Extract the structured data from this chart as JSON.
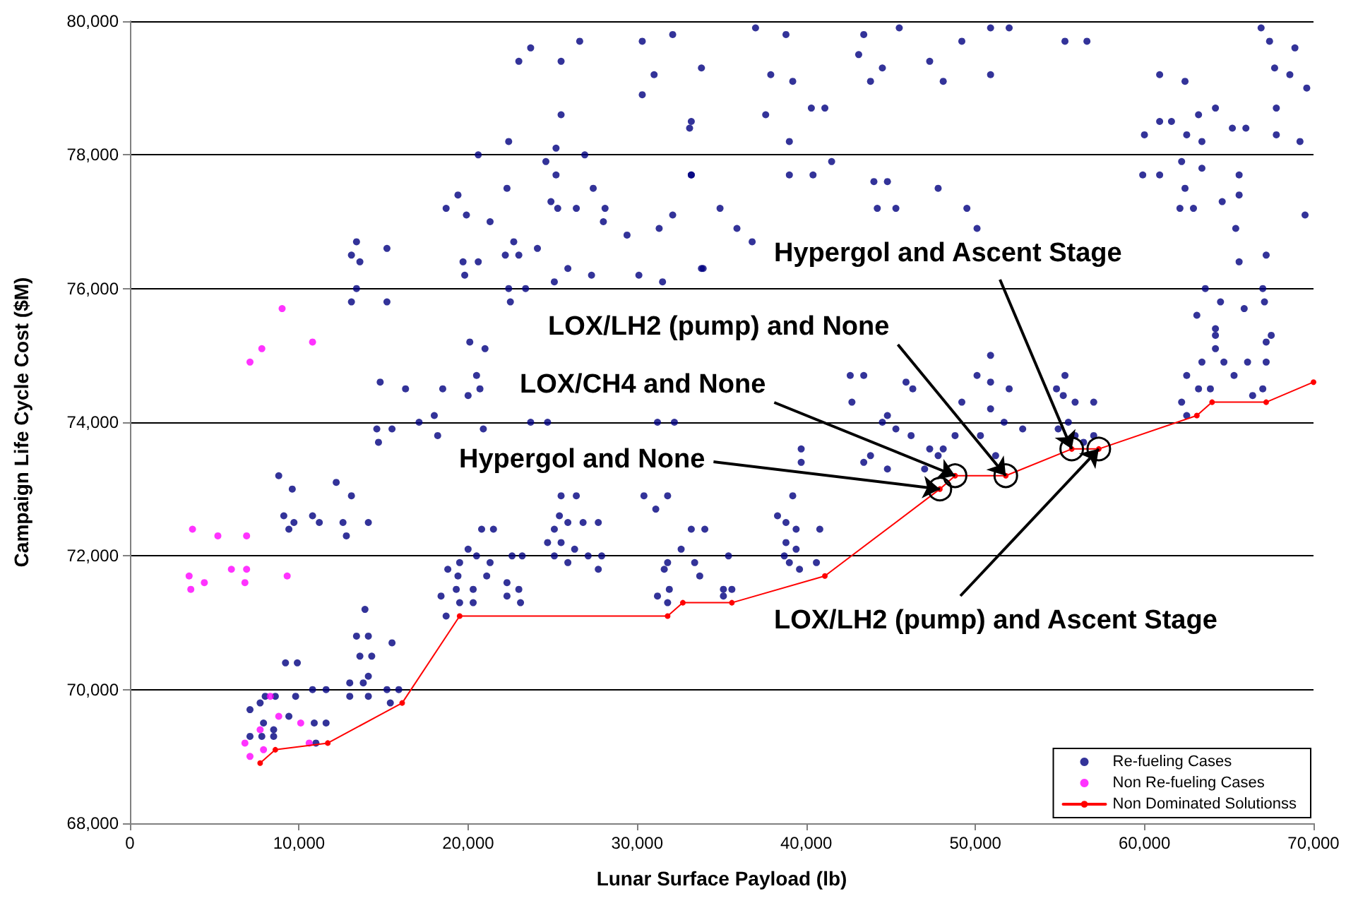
{
  "chart_data": {
    "type": "scatter",
    "xlabel": "Lunar Surface Payload (lb)",
    "ylabel": "Campaign Life Cycle Cost ($M)",
    "xlim": [
      0,
      70000
    ],
    "ylim": [
      68000,
      80000
    ],
    "xticks": [
      0,
      {
        "value": 10000,
        "label": "10,000"
      },
      {
        "value": 20000,
        "label": "20,000"
      },
      {
        "value": 30000,
        "label": "30,000"
      },
      {
        "value": 40000,
        "label": "40,000"
      },
      {
        "value": 50000,
        "label": "50,000"
      },
      {
        "value": 60000,
        "label": "60,000"
      },
      {
        "value": 70000,
        "label": "70,000"
      }
    ],
    "yticks": [
      {
        "value": 68000,
        "label": "68,000"
      },
      {
        "value": 70000,
        "label": "70,000"
      },
      {
        "value": 72000,
        "label": "72,000"
      },
      {
        "value": 74000,
        "label": "74,000"
      },
      {
        "value": 76000,
        "label": "76,000"
      },
      {
        "value": 78000,
        "label": "78,000"
      },
      {
        "value": 80000,
        "label": "80,000"
      }
    ],
    "grid": "y",
    "legend": "bottom right",
    "series": [
      {
        "name": "Re-fueling Cases",
        "color": "#000080",
        "marker": "circle",
        "x": [
          8800,
          9600,
          12200,
          13100,
          9100,
          9700,
          9400,
          10800,
          11200,
          12600,
          12800,
          14100,
          7100,
          7700,
          8000,
          8600,
          9800,
          9200,
          9900,
          7900,
          8500,
          7100,
          7800,
          8500,
          9400,
          10900,
          11600,
          11000,
          10800,
          11600,
          13900,
          13400,
          14100,
          13600,
          14300,
          13000,
          13800,
          14100,
          13000,
          14100,
          15500,
          15200,
          15900,
          15400,
          20000,
          19500,
          20500,
          21300,
          18800,
          19400,
          21100,
          19300,
          20300,
          18400,
          19500,
          20300,
          18700,
          20800,
          21500,
          22300,
          23000,
          22300,
          23100,
          22600,
          23200,
          25400,
          25100,
          25900,
          26800,
          27700,
          24700,
          25500,
          26300,
          27100,
          25100,
          25900,
          27700,
          27900,
          25500,
          26400,
          30400,
          31100,
          31800,
          32600,
          33200,
          34000,
          31800,
          33400,
          35400,
          33700,
          31600,
          31200,
          31900,
          35100,
          35600,
          35100,
          31800,
          38300,
          38800,
          39400,
          40800,
          38800,
          38700,
          39400,
          39000,
          39600,
          40600,
          39200,
          39700,
          39700,
          43400,
          43800,
          44800,
          44500,
          45300,
          46200,
          47300,
          47800,
          47000,
          42600,
          43400,
          42700,
          45900,
          46300,
          44800,
          50900,
          50100,
          50900,
          52000,
          49200,
          50900,
          51700,
          52800,
          50300,
          51200,
          48800,
          48100,
          55300,
          55200,
          55900,
          57000,
          54800,
          55500,
          54900,
          55900,
          57000,
          56400,
          62500,
          62200,
          62500,
          63200,
          63400,
          63900,
          64200,
          64700,
          65300,
          66100,
          67200,
          67000,
          67500,
          66400,
          64200,
          60000,
          60900,
          62500,
          63400,
          61600,
          60900,
          62400,
          63200,
          64200,
          65200,
          66000,
          66900,
          67400,
          68900,
          67700,
          68600,
          67800,
          67800,
          69200,
          69600,
          59900,
          60900,
          62200,
          63400,
          62400,
          62100,
          62900,
          64600,
          65600,
          65600,
          69500,
          65400,
          65600,
          67200,
          63600,
          64500,
          65900,
          67100,
          67000,
          63100,
          64200,
          67200,
          37000,
          38800,
          33800,
          37900,
          39200,
          43400,
          45500,
          44500,
          43100,
          43800,
          47300,
          48100,
          49200,
          50900,
          50900,
          52000,
          55300,
          56600,
          37600,
          39000,
          40300,
          41100,
          39000,
          40400,
          41500,
          44000,
          44800,
          44200,
          45300,
          47800,
          49500,
          34900,
          33200,
          35900,
          36800,
          33800,
          50100,
          33200,
          23700,
          23000,
          26600,
          30300,
          32100,
          25500,
          31000,
          30300,
          25500,
          33100,
          25200,
          22400,
          20600,
          24600,
          26900,
          25200,
          33200,
          19400,
          22300,
          24900,
          27400,
          18700,
          19900,
          21300,
          26400,
          28100,
          25300,
          28000,
          29400,
          31300,
          32100,
          13400,
          13100,
          13600,
          15200,
          19700,
          20600,
          22700,
          22200,
          23000,
          24100,
          19800,
          25900,
          27300,
          30100,
          31500,
          33900,
          22400,
          25100,
          13400,
          15200,
          13100,
          22500,
          23400,
          20100,
          21000,
          20500,
          14800,
          16300,
          18500,
          20000,
          20700,
          14600,
          15500,
          17100,
          18000,
          18200,
          14700,
          20900,
          23700,
          24700,
          31200,
          32200
        ],
        "values": [
          73200,
          73000,
          73100,
          72900,
          72600,
          72500,
          72400,
          72600,
          72500,
          72500,
          72300,
          72500,
          69700,
          69800,
          69900,
          69900,
          69900,
          70400,
          70400,
          69500,
          69400,
          69300,
          69300,
          69300,
          69600,
          69500,
          69500,
          69200,
          70000,
          70000,
          71200,
          70800,
          70800,
          70500,
          70500,
          70100,
          70100,
          70200,
          69900,
          69900,
          70700,
          70000,
          70000,
          69800,
          72100,
          71900,
          72000,
          71900,
          71800,
          71700,
          71700,
          71500,
          71500,
          71400,
          71300,
          71300,
          71100,
          72400,
          72400,
          71600,
          71500,
          71400,
          71300,
          72000,
          72000,
          72600,
          72400,
          72500,
          72500,
          72500,
          72200,
          72200,
          72100,
          72000,
          72000,
          71900,
          71800,
          72000,
          72900,
          72900,
          72900,
          72700,
          72900,
          72100,
          72400,
          72400,
          71900,
          71900,
          72000,
          71700,
          71800,
          71400,
          71500,
          71500,
          71500,
          71400,
          71300,
          72600,
          72500,
          72400,
          72400,
          72200,
          72000,
          72100,
          71900,
          71800,
          71900,
          72900,
          73600,
          73400,
          73400,
          73500,
          73300,
          74000,
          73900,
          73800,
          73600,
          73500,
          73300,
          74700,
          74700,
          74300,
          74600,
          74500,
          74100,
          75000,
          74700,
          74600,
          74500,
          74300,
          74200,
          74000,
          73900,
          73800,
          73500,
          73800,
          73600,
          74700,
          74400,
          74300,
          74300,
          74500,
          74000,
          73900,
          73800,
          73800,
          73700,
          74700,
          74300,
          74100,
          74500,
          74900,
          74500,
          75100,
          74900,
          74700,
          74900,
          74900,
          74500,
          75300,
          74400,
          75400,
          78300,
          78500,
          78300,
          78200,
          78500,
          79200,
          79100,
          78600,
          78700,
          78400,
          78400,
          79900,
          79700,
          79600,
          79300,
          79200,
          78700,
          78300,
          78200,
          79000,
          77700,
          77700,
          77900,
          77800,
          77500,
          77200,
          77200,
          77300,
          77700,
          77400,
          77100,
          76900,
          76400,
          76500,
          76000,
          75800,
          75700,
          75800,
          76000,
          75600,
          75300,
          75200,
          79900,
          79800,
          79300,
          79200,
          79100,
          79800,
          79900,
          79300,
          79500,
          79100,
          79400,
          79100,
          79700,
          79200,
          79900,
          79900,
          79700,
          79700,
          78600,
          78200,
          78700,
          78700,
          77700,
          77700,
          77900,
          77600,
          77600,
          77200,
          77200,
          77500,
          77200,
          77200,
          77700,
          76900,
          76700,
          76300,
          76900,
          78500,
          79600,
          79400,
          79700,
          79700,
          79800,
          79400,
          79200,
          78900,
          78600,
          78400,
          78100,
          78200,
          78000,
          77900,
          78000,
          77700,
          77700,
          77400,
          77500,
          77300,
          77500,
          77200,
          77100,
          77000,
          77200,
          77200,
          77200,
          77000,
          76800,
          76900,
          77100,
          76700,
          76500,
          76400,
          76600,
          76400,
          76400,
          76700,
          76500,
          76500,
          76600,
          76200,
          76300,
          76200,
          76200,
          76100,
          76300,
          76000,
          76100,
          76000,
          75800,
          75800,
          75800,
          76000,
          75200,
          75100,
          74700,
          74600,
          74500,
          74500,
          74400,
          74500,
          73900,
          73900,
          74000,
          74100,
          73800,
          73700,
          73900,
          74000,
          74000,
          74000,
          74000
        ]
      },
      {
        "name": "Non Re-fueling Cases",
        "color": "#ff00ff",
        "marker": "circle",
        "x": [
          3700,
          5200,
          6900,
          3500,
          4400,
          3600,
          6000,
          6900,
          6800,
          9300,
          8300,
          8800,
          10100,
          7700,
          6800,
          7100,
          7900,
          10600,
          9000,
          7800,
          10800,
          7100
        ],
        "values": [
          72400,
          72300,
          72300,
          71700,
          71600,
          71500,
          71800,
          71800,
          71600,
          71700,
          69900,
          69600,
          69500,
          69400,
          69200,
          69000,
          69100,
          69200,
          75700,
          75100,
          75200,
          74900
        ]
      },
      {
        "name": "Non Dominated Solutionss",
        "type": "line",
        "color": "#ff0000",
        "marker": "circle",
        "line_style": "solid",
        "x": [
          7700,
          8600,
          11700,
          16100,
          19500,
          31800,
          32700,
          35600,
          41100,
          47900,
          48800,
          51800,
          55700,
          57300,
          63100,
          64000,
          67200,
          70000
        ],
        "values": [
          68900,
          69100,
          69200,
          69800,
          71100,
          71100,
          71300,
          71300,
          71700,
          73000,
          73200,
          73200,
          73600,
          73600,
          74100,
          74300,
          74300,
          74600
        ]
      }
    ],
    "annotations": [
      {
        "text": "Hypergol and Ascent Stage",
        "x": 55700,
        "y": 73600
      },
      {
        "text": "LOX/LH2 (pump) and None",
        "x": 51800,
        "y": 73200
      },
      {
        "text": "LOX/CH4 and None",
        "x": 48800,
        "y": 73200
      },
      {
        "text": "Hypergol and None",
        "x": 47900,
        "y": 73000
      },
      {
        "text": "LOX/LH2 (pump) and Ascent Stage",
        "x": 57300,
        "y": 73600
      }
    ]
  }
}
